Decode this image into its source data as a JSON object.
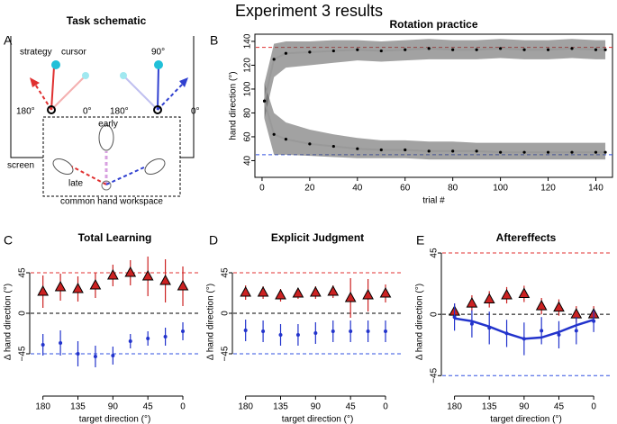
{
  "title": "Experiment 3 results",
  "schematic": {
    "title": "Task schematic",
    "panel": "A",
    "strategy": "strategy",
    "cursor": "cursor",
    "left_180": "180°",
    "left_0": "0°",
    "right_180": "180°",
    "right_90": "90°",
    "right_0": "0°",
    "screen": "screen",
    "early": "early",
    "late": "late",
    "workspace": "common hand workspace"
  },
  "chart_data": [
    {
      "type": "line",
      "panel": "B",
      "title": "Rotation practice",
      "x_label": "trial #",
      "y_label": "hand direction (°)",
      "x": [
        1,
        5,
        10,
        20,
        30,
        40,
        50,
        60,
        70,
        80,
        90,
        100,
        110,
        120,
        130,
        140,
        144
      ],
      "series": [
        {
          "color": "#999999",
          "band_color": "#555555",
          "values": [
            90,
            125,
            130,
            131,
            132,
            133,
            132,
            133,
            134,
            133,
            133,
            134,
            133,
            133,
            134,
            133,
            133
          ],
          "band_low": [
            75,
            110,
            118,
            120,
            122,
            124,
            123,
            124,
            125,
            125,
            125,
            126,
            125,
            125,
            126,
            125,
            125
          ],
          "band_high": [
            105,
            138,
            140,
            140,
            141,
            141,
            140,
            141,
            142,
            141,
            141,
            142,
            141,
            141,
            142,
            141,
            141
          ]
        },
        {
          "color": "#999999",
          "band_color": "#555555",
          "values": [
            90,
            62,
            58,
            54,
            52,
            50,
            49,
            49,
            48,
            48,
            48,
            47,
            47,
            47,
            47,
            47,
            47
          ],
          "band_low": [
            75,
            45,
            45,
            44,
            43,
            42,
            42,
            42,
            41,
            41,
            41,
            41,
            41,
            41,
            41,
            41,
            41
          ],
          "band_high": [
            105,
            80,
            72,
            66,
            62,
            59,
            57,
            57,
            56,
            56,
            55,
            55,
            55,
            55,
            55,
            55,
            55
          ]
        }
      ],
      "xlim": [
        -3,
        147
      ],
      "ylim": [
        26,
        146
      ],
      "xticks": [
        0,
        20,
        40,
        60,
        80,
        100,
        120,
        140
      ],
      "yticks": [
        40,
        60,
        80,
        100,
        120,
        140
      ],
      "hlines": [
        {
          "value": 135,
          "color": "#e03030"
        },
        {
          "value": 45,
          "color": "#3050e0"
        }
      ]
    },
    {
      "type": "errorbar",
      "panel": "C",
      "title": "Total Learning",
      "x_label": "target direction (°)",
      "y_label": "Δ hand direction (°)",
      "x": [
        180,
        157.5,
        135,
        112.5,
        90,
        67.5,
        45,
        22.5,
        0
      ],
      "series": [
        {
          "color": "#cc2222",
          "marker": "triangle",
          "values": [
            24,
            29,
            27,
            31,
            42,
            45,
            41,
            36,
            30
          ],
          "errors": [
            18,
            15,
            14,
            14,
            12,
            14,
            22,
            24,
            22
          ]
        },
        {
          "color": "#2233cc",
          "marker": "dot",
          "values": [
            -35,
            -33,
            -45,
            -48,
            -47,
            -31,
            -28,
            -26,
            -20
          ],
          "errors": [
            12,
            14,
            14,
            12,
            10,
            8,
            8,
            10,
            10
          ]
        }
      ],
      "xlim": [
        197,
        -22
      ],
      "ylim": [
        -92,
        73
      ],
      "xticks": [
        180,
        135,
        90,
        45,
        0
      ],
      "yticks": [
        {
          "value": -45,
          "label": "−45"
        },
        0,
        45
      ],
      "hlines": [
        {
          "value": 45,
          "color": "#e03030"
        },
        {
          "value": 0,
          "color": "#000000"
        },
        {
          "value": -45,
          "color": "#3050e0"
        }
      ]
    },
    {
      "type": "errorbar",
      "panel": "D",
      "title": "Explicit Judgment",
      "x_label": "target direction (°)",
      "y_label": "Δ hand direction (°)",
      "x": [
        180,
        157.5,
        135,
        112.5,
        90,
        67.5,
        45,
        22.5,
        0
      ],
      "series": [
        {
          "color": "#cc2222",
          "marker": "triangle",
          "values": [
            23,
            23,
            20,
            22,
            23,
            24,
            17,
            20,
            22
          ],
          "errors": [
            8,
            7,
            7,
            6,
            7,
            7,
            22,
            18,
            10
          ]
        },
        {
          "color": "#2233cc",
          "marker": "dot",
          "values": [
            -19,
            -20,
            -24,
            -24,
            -22,
            -20,
            -20,
            -20,
            -20
          ],
          "errors": [
            12,
            12,
            12,
            12,
            12,
            12,
            12,
            12,
            12
          ]
        }
      ],
      "xlim": [
        197,
        -22
      ],
      "ylim": [
        -92,
        73
      ],
      "xticks": [
        180,
        135,
        90,
        45,
        0
      ],
      "yticks": [
        {
          "value": -45,
          "label": "−45"
        },
        0,
        45
      ],
      "hlines": [
        {
          "value": 45,
          "color": "#e03030"
        },
        {
          "value": 0,
          "color": "#000000"
        },
        {
          "value": -45,
          "color": "#3050e0"
        }
      ]
    },
    {
      "type": "errorbar",
      "panel": "E",
      "title": "Aftereffects",
      "x_label": "target direction (°)",
      "y_label": "Δ hand direction (°)",
      "x": [
        180,
        157.5,
        135,
        112.5,
        90,
        67.5,
        45,
        22.5,
        0
      ],
      "series": [
        {
          "color": "#cc2222",
          "marker": "triangle",
          "values": [
            2,
            8,
            11,
            14,
            15,
            6,
            5,
            0,
            0
          ],
          "errors": [
            6,
            6,
            6,
            6,
            6,
            6,
            6,
            6,
            6
          ]
        },
        {
          "color": "#2233cc",
          "marker": "dot",
          "values": [
            -2,
            -7,
            -10,
            -14,
            -18,
            -12,
            -15,
            -12,
            -5
          ],
          "errors": [
            10,
            10,
            12,
            10,
            12,
            10,
            10,
            10,
            8
          ]
        },
        {
          "color": "#2233cc",
          "marker": "curve",
          "values": [
            -3,
            -5,
            -9,
            -14,
            -18,
            -17,
            -13,
            -8,
            -4
          ]
        }
      ],
      "xlim": [
        197,
        -22
      ],
      "ylim": [
        -60,
        49
      ],
      "xticks": [
        180,
        135,
        90,
        45,
        0
      ],
      "yticks": [
        {
          "value": -45,
          "label": "−45"
        },
        0,
        45
      ],
      "hlines": [
        {
          "value": 45,
          "color": "#e03030"
        },
        {
          "value": 0,
          "color": "#000000"
        },
        {
          "value": -45,
          "color": "#3050e0"
        }
      ]
    }
  ]
}
